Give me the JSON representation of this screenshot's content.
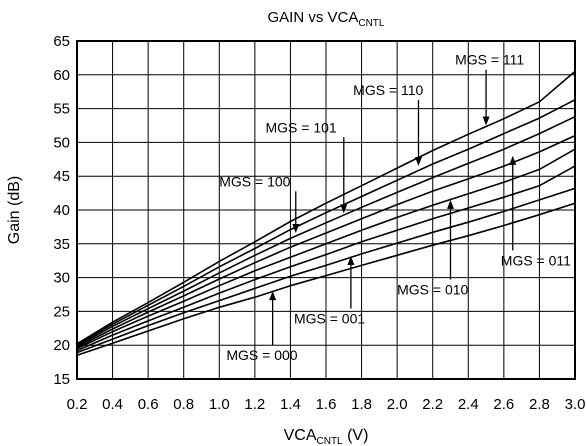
{
  "chart_data": {
    "type": "line",
    "title": "GAIN vs VCA",
    "title_sub": "CNTL",
    "xlabel": "VCA",
    "xlabel_sub": "CNTL",
    "xlabel_unit": "(V)",
    "ylabel": "Gain (dB)",
    "xlim": [
      0.2,
      3.0
    ],
    "ylim": [
      15,
      65
    ],
    "grid": true,
    "xticks": [
      "0.2",
      "0.4",
      "0.6",
      "0.8",
      "1.0",
      "1.2",
      "1.4",
      "1.6",
      "1.8",
      "2.0",
      "2.2",
      "2.4",
      "2.6",
      "2.8",
      "3.0"
    ],
    "yticks": [
      "15",
      "20",
      "25",
      "30",
      "35",
      "40",
      "45",
      "50",
      "55",
      "60",
      "65"
    ],
    "x": [
      0.2,
      0.4,
      0.6,
      0.8,
      1.0,
      1.2,
      1.4,
      1.6,
      1.8,
      2.0,
      2.2,
      2.4,
      2.6,
      2.8,
      3.0
    ],
    "series": [
      {
        "name": "MGS = 000",
        "values": [
          18.5,
          20.3,
          22.1,
          23.9,
          25.6,
          27.1,
          28.8,
          30.3,
          31.8,
          33.3,
          34.8,
          36.2,
          37.7,
          39.3,
          41.0
        ]
      },
      {
        "name": "MGS = 001",
        "values": [
          18.9,
          20.9,
          22.9,
          24.8,
          26.6,
          28.4,
          30.2,
          31.8,
          33.5,
          35.1,
          36.7,
          38.2,
          39.8,
          41.5,
          43.2
        ]
      },
      {
        "name": "MGS = 010",
        "values": [
          19.2,
          21.5,
          23.6,
          25.6,
          27.7,
          29.7,
          31.6,
          33.4,
          35.3,
          37.0,
          38.7,
          40.3,
          41.9,
          43.6,
          46.5
        ]
      },
      {
        "name": "MGS = 011",
        "values": [
          19.5,
          22.0,
          24.3,
          26.5,
          28.8,
          31.0,
          33.0,
          35.0,
          37.0,
          38.9,
          40.7,
          42.4,
          44.1,
          46.0,
          49.0
        ]
      },
      {
        "name": "MGS = 100",
        "values": [
          19.7,
          22.4,
          24.9,
          27.3,
          29.8,
          32.2,
          34.5,
          36.6,
          38.7,
          40.8,
          42.8,
          44.6,
          46.5,
          48.6,
          51.0
        ]
      },
      {
        "name": "MGS = 101",
        "values": [
          19.9,
          22.8,
          25.4,
          28.0,
          30.7,
          33.3,
          35.8,
          38.1,
          40.4,
          42.6,
          44.8,
          46.9,
          49.0,
          51.3,
          53.8
        ]
      },
      {
        "name": "MGS = 110",
        "values": [
          20.1,
          23.1,
          25.9,
          28.7,
          31.6,
          34.3,
          37.1,
          39.6,
          42.0,
          44.4,
          46.8,
          49.0,
          51.3,
          53.6,
          56.3
        ]
      },
      {
        "name": "MGS = 111",
        "values": [
          20.2,
          23.4,
          26.3,
          29.3,
          32.4,
          35.3,
          38.3,
          41.0,
          43.6,
          46.2,
          48.8,
          51.2,
          53.5,
          56.0,
          60.5
        ]
      }
    ],
    "annotations": [
      {
        "text": "MGS = 111",
        "arrow_x": 2.5,
        "arrow_y": 52.5,
        "text_x": 2.52,
        "text_y": 61.5
      },
      {
        "text": "MGS = 110",
        "arrow_x": 2.12,
        "arrow_y": 46.5,
        "text_x": 1.95,
        "text_y": 57.0
      },
      {
        "text": "MGS = 101",
        "arrow_x": 1.7,
        "arrow_y": 39.5,
        "text_x": 1.46,
        "text_y": 51.5
      },
      {
        "text": "MGS = 100",
        "arrow_x": 1.43,
        "arrow_y": 36.6,
        "text_x": 1.2,
        "text_y": 43.5
      },
      {
        "text": "MGS = 011",
        "arrow_x": 2.65,
        "arrow_y": 48.0,
        "text_x": 2.78,
        "text_y": 31.8
      },
      {
        "text": "MGS = 010",
        "arrow_x": 2.3,
        "arrow_y": 41.5,
        "text_x": 2.2,
        "text_y": 27.5
      },
      {
        "text": "MGS = 001",
        "arrow_x": 1.74,
        "arrow_y": 33.2,
        "text_x": 1.62,
        "text_y": 23.2
      },
      {
        "text": "MGS = 000",
        "arrow_x": 1.3,
        "arrow_y": 28.0,
        "text_x": 1.24,
        "text_y": 17.8
      }
    ]
  }
}
